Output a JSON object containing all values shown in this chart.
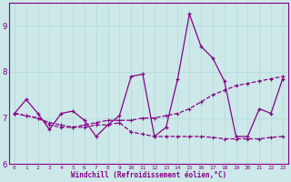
{
  "xlabel": "Windchill (Refroidissement éolien,°C)",
  "x": [
    0,
    1,
    2,
    3,
    4,
    5,
    6,
    7,
    8,
    9,
    10,
    11,
    12,
    13,
    14,
    15,
    16,
    17,
    18,
    19,
    20,
    21,
    22,
    23
  ],
  "y_main": [
    7.1,
    7.4,
    7.1,
    6.75,
    7.1,
    7.15,
    6.95,
    6.6,
    6.85,
    7.05,
    7.9,
    7.95,
    6.6,
    6.8,
    7.85,
    9.25,
    8.55,
    8.3,
    7.8,
    6.6,
    6.6,
    7.2,
    7.1,
    7.85
  ],
  "y_trend1": [
    7.1,
    7.05,
    7.0,
    6.9,
    6.85,
    6.8,
    6.85,
    6.9,
    6.95,
    6.95,
    6.95,
    7.0,
    7.0,
    7.05,
    7.1,
    7.2,
    7.35,
    7.5,
    7.6,
    7.7,
    7.75,
    7.8,
    7.85,
    7.9
  ],
  "y_trend2": [
    7.1,
    7.05,
    7.0,
    6.85,
    6.8,
    6.8,
    6.8,
    6.85,
    6.85,
    6.9,
    6.7,
    6.65,
    6.6,
    6.6,
    6.6,
    6.6,
    6.6,
    6.58,
    6.55,
    6.55,
    6.55,
    6.55,
    6.58,
    6.6
  ],
  "line_color": "#880088",
  "bg_color": "#cce8e8",
  "grid_color": "#aad4d4",
  "ylim": [
    6.0,
    9.5
  ],
  "yticks": [
    6,
    7,
    8,
    9
  ],
  "xlim": [
    -0.5,
    23.5
  ]
}
